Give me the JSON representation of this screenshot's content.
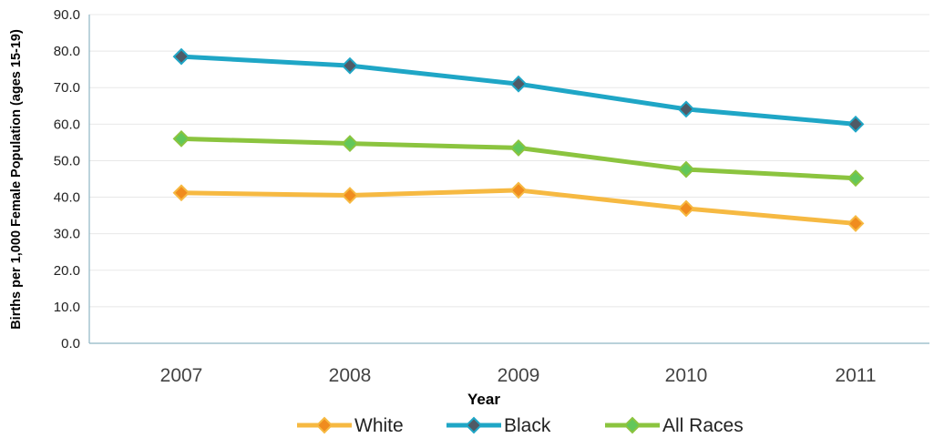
{
  "chart_data": {
    "type": "line",
    "title": "",
    "xlabel": "Year",
    "ylabel": "Births per 1,000 Female Population (ages 15-19)",
    "categories": [
      "2007",
      "2008",
      "2009",
      "2010",
      "2011"
    ],
    "ylim": [
      0,
      90
    ],
    "yticks": [
      "0.0",
      "10.0",
      "20.0",
      "30.0",
      "40.0",
      "50.0",
      "60.0",
      "70.0",
      "80.0",
      "90.0"
    ],
    "grid": true,
    "legend": "bottom",
    "series": [
      {
        "name": "White",
        "color": "#f6b942",
        "marker_color": "#f08c1e",
        "values": [
          41.2,
          40.5,
          41.9,
          36.9,
          32.8
        ]
      },
      {
        "name": "Black",
        "color": "#1fa6c6",
        "marker_color": "#505a66",
        "values": [
          78.5,
          76.0,
          71.0,
          64.1,
          60.0
        ]
      },
      {
        "name": "All Races",
        "color": "#8bc43f",
        "marker_color": "#62c75a",
        "values": [
          56.0,
          54.7,
          53.5,
          47.6,
          45.2
        ]
      }
    ]
  }
}
